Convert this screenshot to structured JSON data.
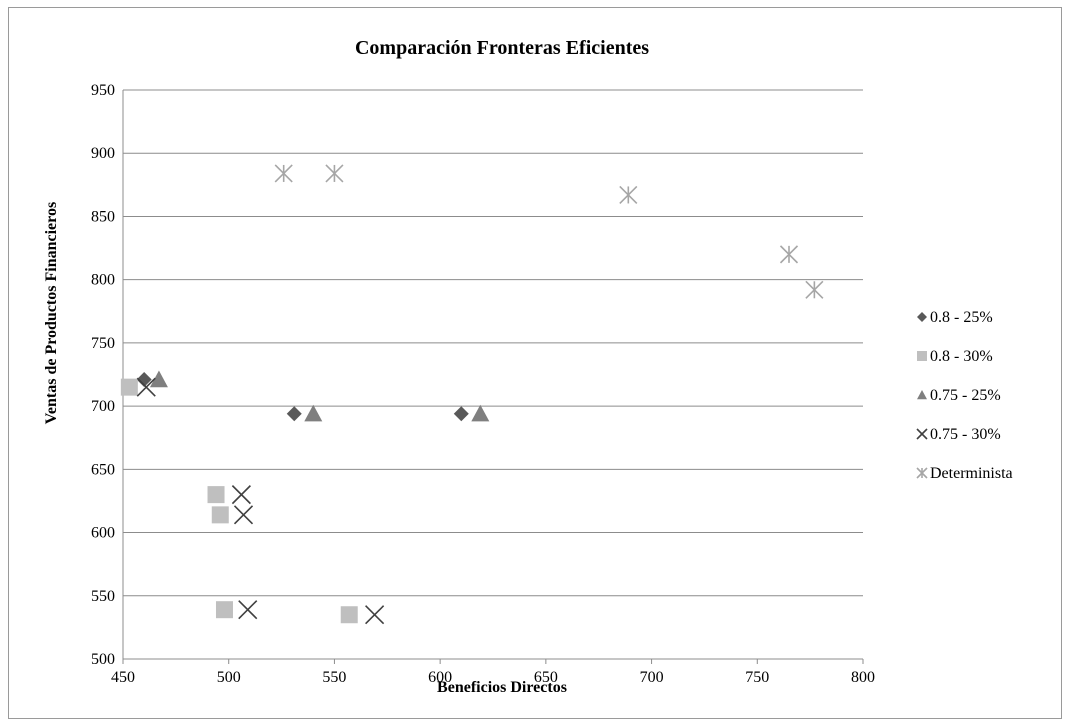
{
  "chart_data": {
    "type": "scatter",
    "title": "Comparación Fronteras Eficientes",
    "xlabel": "Beneficios Directos",
    "ylabel": "Ventas de Productos Financieros",
    "xlim": [
      450,
      800
    ],
    "ylim": [
      500,
      950
    ],
    "xticks": [
      450,
      500,
      550,
      600,
      650,
      700,
      750,
      800
    ],
    "yticks": [
      500,
      550,
      600,
      650,
      700,
      750,
      800,
      850,
      900,
      950
    ],
    "grid": "horizontal",
    "legend_position": "right",
    "series": [
      {
        "name": "0.8 - 25%",
        "marker": "diamond",
        "color": "#595959",
        "points": [
          [
            460,
            721
          ],
          [
            531,
            694
          ],
          [
            610,
            694
          ]
        ]
      },
      {
        "name": "0.8 - 30%",
        "marker": "square",
        "color": "#bfbfbf",
        "points": [
          [
            453,
            715
          ],
          [
            494,
            630
          ],
          [
            496,
            614
          ],
          [
            498,
            539
          ],
          [
            557,
            535
          ]
        ]
      },
      {
        "name": "0.75 - 25%",
        "marker": "triangle",
        "color": "#7f7f7f",
        "points": [
          [
            467,
            721
          ],
          [
            540,
            694
          ],
          [
            619,
            694
          ]
        ]
      },
      {
        "name": "0.75 - 30%",
        "marker": "x",
        "color": "#404040",
        "points": [
          [
            461,
            715
          ],
          [
            506,
            630
          ],
          [
            507,
            614
          ],
          [
            509,
            539
          ],
          [
            569,
            535
          ]
        ]
      },
      {
        "name": "Determinista",
        "marker": "star",
        "color": "#a6a6a6",
        "points": [
          [
            526,
            884
          ],
          [
            550,
            884
          ],
          [
            689,
            867
          ],
          [
            765,
            820
          ],
          [
            777,
            792
          ]
        ]
      }
    ]
  }
}
